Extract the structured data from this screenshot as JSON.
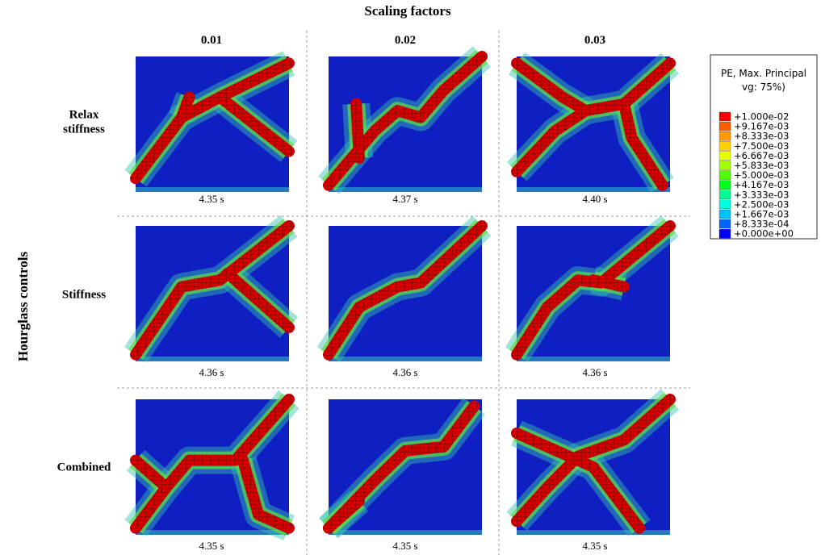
{
  "title": "Scaling factors",
  "row_axis_label": "Hourglass controls",
  "columns": [
    "0.01",
    "0.02",
    "0.03"
  ],
  "rows": [
    {
      "label_lines": [
        "Relax",
        "stiffness"
      ],
      "times": [
        "4.35 s",
        "4.37 s",
        "4.40 s"
      ]
    },
    {
      "label_lines": [
        "Stiffness"
      ],
      "times": [
        "4.36 s",
        "4.36 s",
        "4.36 s"
      ]
    },
    {
      "label_lines": [
        "Combined"
      ],
      "times": [
        "4.35 s",
        "4.35 s",
        "4.35 s"
      ]
    }
  ],
  "legend": {
    "title_lines": [
      "PE, Max. Principal",
      "vg: 75%)"
    ],
    "labels": [
      "+1.000e-02",
      "+9.167e-03",
      "+8.333e-03",
      "+7.500e-03",
      "+6.667e-03",
      "+5.833e-03",
      "+5.000e-03",
      "+4.167e-03",
      "+3.333e-03",
      "+2.500e-03",
      "+1.667e-03",
      "+8.333e-04",
      "+0.000e+00"
    ]
  }
}
